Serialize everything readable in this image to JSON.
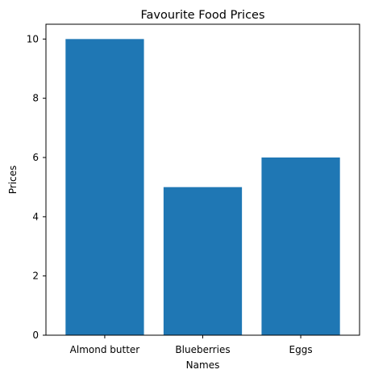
{
  "chart_data": {
    "type": "bar",
    "title": "Favourite Food Prices",
    "xlabel": "Names",
    "ylabel": "Prices",
    "categories": [
      "Almond butter",
      "Blueberries",
      "Eggs"
    ],
    "values": [
      10,
      5,
      6
    ],
    "ylim": [
      0,
      10.5
    ],
    "yticks": [
      0,
      2,
      4,
      6,
      8,
      10
    ],
    "bar_color": "#1f77b4",
    "grid": false,
    "legend": "none"
  }
}
